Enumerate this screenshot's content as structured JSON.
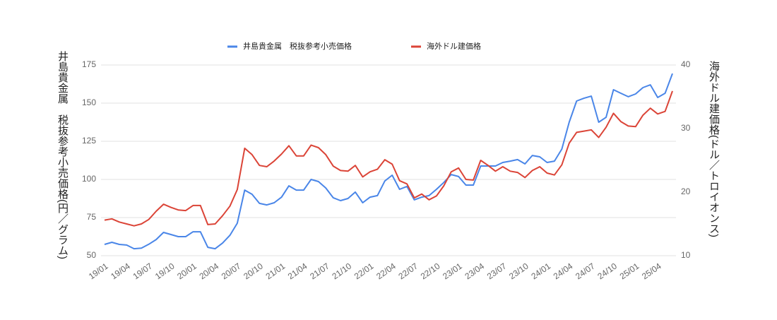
{
  "chart_data": {
    "type": "line",
    "ylabel": "井島貴金属　税抜参考小売価格(円／グラム)",
    "y2label": "海外ドル建価格(ドル／トロイオンス)",
    "categories": [
      "19/01",
      null,
      null,
      "19/04",
      null,
      null,
      "19/07",
      null,
      null,
      "19/10",
      null,
      null,
      "20/01",
      null,
      null,
      "20/04",
      null,
      null,
      "20/07",
      null,
      null,
      "20/10",
      null,
      null,
      "21/01",
      null,
      null,
      "21/04",
      null,
      null,
      "21/07",
      null,
      null,
      "21/10",
      null,
      null,
      "22/01",
      null,
      null,
      "22/04",
      null,
      null,
      "22/07",
      null,
      null,
      "22/10",
      null,
      null,
      "23/01",
      null,
      null,
      "23/04",
      null,
      null,
      "23/07",
      null,
      null,
      "23/10",
      null,
      null,
      "24/01",
      null,
      null,
      "24/04",
      null,
      null,
      "24/07",
      null,
      null,
      "24/10",
      null,
      null,
      "25/01",
      null,
      null,
      "25/04",
      null,
      null
    ],
    "series": [
      {
        "name": "井島貴金属　税抜参考小売価格",
        "color": "#4a86e8",
        "axis": "y",
        "values": [
          57.4,
          58.8,
          57.4,
          57,
          54.6,
          55,
          57.5,
          60.6,
          65.3,
          63.9,
          62.5,
          62.5,
          65.7,
          65.7,
          55.5,
          54.6,
          58.3,
          63.4,
          71.3,
          93,
          90.3,
          84.3,
          83.3,
          84.7,
          88.4,
          95.8,
          93,
          93,
          100,
          98.6,
          94.4,
          88,
          86.1,
          87.5,
          91.7,
          84.7,
          88.4,
          89.4,
          99,
          102.8,
          93.5,
          95.4,
          86.6,
          88.4,
          89.4,
          93.5,
          98,
          103.2,
          101.9,
          96.3,
          96.3,
          108.8,
          108.8,
          108.8,
          111.1,
          112,
          113,
          110.2,
          115.7,
          114.8,
          111.1,
          112,
          119.9,
          137.5,
          151.4,
          153.2,
          154.6,
          137.5,
          140.7,
          158.8,
          156.5,
          154.2,
          156,
          160.2,
          162,
          153.7,
          156.5,
          169.4
        ]
      },
      {
        "name": "海外ドル建価格",
        "color": "#db4437",
        "axis": "y2",
        "values": [
          15.6,
          15.8,
          15.3,
          15,
          14.7,
          15,
          15.7,
          17,
          18.1,
          17.6,
          17.2,
          17.1,
          17.9,
          17.9,
          14.9,
          15,
          16.3,
          17.8,
          20.4,
          26.9,
          25.9,
          24.2,
          24,
          24.9,
          26,
          27.3,
          25.7,
          25.7,
          27.4,
          27,
          25.9,
          24.1,
          23.4,
          23.3,
          24.2,
          22.4,
          23.2,
          23.6,
          25.1,
          24.4,
          21.8,
          21.3,
          19.1,
          19.7,
          18.8,
          19.4,
          21,
          23.2,
          23.8,
          22,
          21.9,
          25,
          24.2,
          23.3,
          24,
          23.3,
          23.1,
          22.3,
          23.4,
          24,
          23,
          22.7,
          24.3,
          27.7,
          29.4,
          29.6,
          29.8,
          28.6,
          30.2,
          32.4,
          31.1,
          30.4,
          30.3,
          32.1,
          33.2,
          32.3,
          32.7,
          35.9
        ]
      }
    ],
    "ylim": [
      50,
      175
    ],
    "yticks": [
      50,
      75,
      100,
      125,
      150,
      175
    ],
    "y2lim": [
      10,
      40
    ],
    "y2ticks": [
      10,
      20,
      30,
      40
    ],
    "grid": true,
    "legend": "top"
  }
}
